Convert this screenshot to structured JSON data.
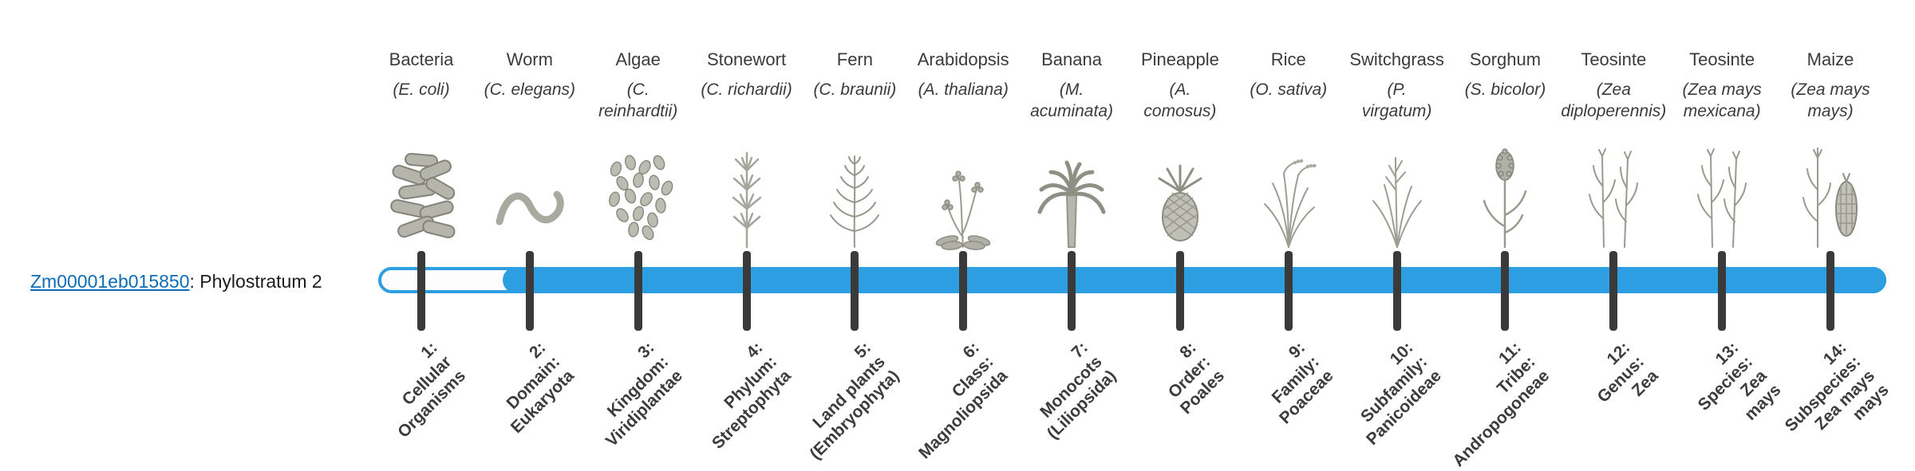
{
  "gene": {
    "id": "Zm00001eb015850",
    "rest_label": ": Phylostratum 2",
    "phylostratum": 2
  },
  "bar": {
    "fill_color": "#2e9ee2",
    "track_color": "#ffffff",
    "filled_from_stratum": 2
  },
  "columns": [
    {
      "common_name": "Bacteria",
      "sci_lines": [
        "(E. coli)"
      ],
      "icon": "bacteria",
      "stratum": 1,
      "label_lines": [
        "1:",
        "Cellular",
        "Organisms"
      ]
    },
    {
      "common_name": "Worm",
      "sci_lines": [
        "(C. elegans)"
      ],
      "icon": "worm",
      "stratum": 2,
      "label_lines": [
        "2:",
        "Domain:",
        "Eukaryota"
      ]
    },
    {
      "common_name": "Algae",
      "sci_lines": [
        "(C.",
        "reinhardtii)"
      ],
      "icon": "algae",
      "stratum": 3,
      "label_lines": [
        "3:",
        "Kingdom:",
        "Viridiplantae"
      ]
    },
    {
      "common_name": "Stonewort",
      "sci_lines": [
        "(C. richardii)"
      ],
      "icon": "stonewort",
      "stratum": 4,
      "label_lines": [
        "4:",
        "Phylum:",
        "Streptophyta"
      ]
    },
    {
      "common_name": "Fern",
      "sci_lines": [
        "(C. braunii)"
      ],
      "icon": "fern",
      "stratum": 5,
      "label_lines": [
        "5:",
        "Land plants",
        "(Embryophyta)"
      ]
    },
    {
      "common_name": "Arabidopsis",
      "sci_lines": [
        "(A. thaliana)"
      ],
      "icon": "arabidopsis",
      "stratum": 6,
      "label_lines": [
        "6:",
        "Class:",
        "Magnoliopsida"
      ]
    },
    {
      "common_name": "Banana",
      "sci_lines": [
        "(M.",
        "acuminata)"
      ],
      "icon": "banana",
      "stratum": 7,
      "label_lines": [
        "7:",
        "Monocots",
        "(Liliopsida)"
      ]
    },
    {
      "common_name": "Pineapple",
      "sci_lines": [
        "(A.",
        "comosus)"
      ],
      "icon": "pineapple",
      "stratum": 8,
      "label_lines": [
        "8:",
        "Order:",
        "Poales"
      ]
    },
    {
      "common_name": "Rice",
      "sci_lines": [
        "(O. sativa)"
      ],
      "icon": "rice",
      "stratum": 9,
      "label_lines": [
        "9:",
        "Family:",
        "Poaceae"
      ]
    },
    {
      "common_name": "Switchgrass",
      "sci_lines": [
        "(P.",
        "virgatum)"
      ],
      "icon": "switchgrass",
      "stratum": 10,
      "label_lines": [
        "10:",
        "Subfamily:",
        "Panicoideae"
      ]
    },
    {
      "common_name": "Sorghum",
      "sci_lines": [
        "(S. bicolor)"
      ],
      "icon": "sorghum",
      "stratum": 11,
      "label_lines": [
        "11:",
        "Tribe:",
        "Andropogoneae"
      ]
    },
    {
      "common_name": "Teosinte",
      "sci_lines": [
        "(Zea",
        "diploperennis)"
      ],
      "icon": "teosinte",
      "stratum": 12,
      "label_lines": [
        "12:",
        "Genus:",
        "Zea"
      ]
    },
    {
      "common_name": "Teosinte",
      "sci_lines": [
        "(Zea mays",
        "mexicana)"
      ],
      "icon": "teosinte",
      "stratum": 13,
      "label_lines": [
        "13:",
        "Species:",
        "Zea",
        "mays"
      ]
    },
    {
      "common_name": "Maize",
      "sci_lines": [
        "(Zea mays",
        "mays)"
      ],
      "icon": "maize",
      "stratum": 14,
      "label_lines": [
        "14:",
        "Subspecies:",
        "Zea mays",
        "mays"
      ]
    }
  ]
}
